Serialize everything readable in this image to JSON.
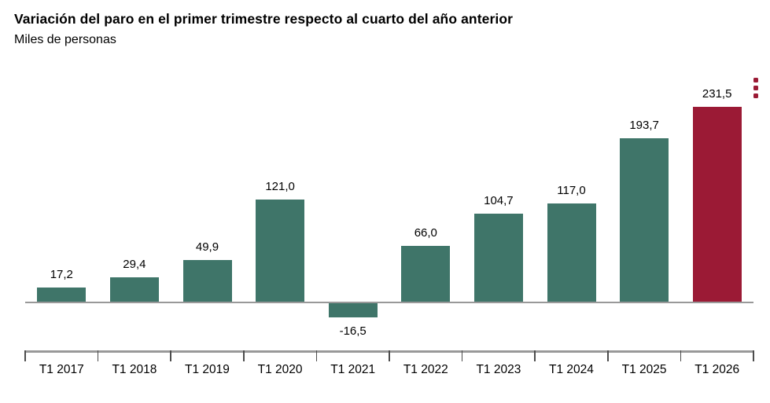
{
  "page": {
    "menu_icon": "kebab-vertical-dots"
  },
  "colors": {
    "bar_default": "#3f7569",
    "bar_highlight": "#9b1a35",
    "zero_line": "#999999",
    "axis_line": "#999999",
    "tick": "#4d4d4d",
    "text": "#000000"
  },
  "chart_data": {
    "type": "bar",
    "title": "Variación del paro en el primer trimestre respecto al cuarto del año anterior",
    "subtitle": "Miles de personas",
    "categories": [
      "T1 2017",
      "T1 2018",
      "T1 2019",
      "T1 2020",
      "T1 2021",
      "T1 2022",
      "T1 2023",
      "T1 2024",
      "T1 2025",
      "T1 2026"
    ],
    "values": [
      17.2,
      29.4,
      49.9,
      121.0,
      -16.5,
      66.0,
      104.7,
      117.0,
      193.7,
      231.5
    ],
    "value_labels": [
      "17,2",
      "29,4",
      "49,9",
      "121,0",
      "-16,5",
      "66,0",
      "104,7",
      "117,0",
      "193,7",
      "231,5"
    ],
    "highlight_index": 9,
    "xlabel": "",
    "ylabel": "Miles de personas",
    "ylim": [
      -40,
      250
    ],
    "grid": false,
    "legend": false,
    "decimal_separator": ","
  }
}
